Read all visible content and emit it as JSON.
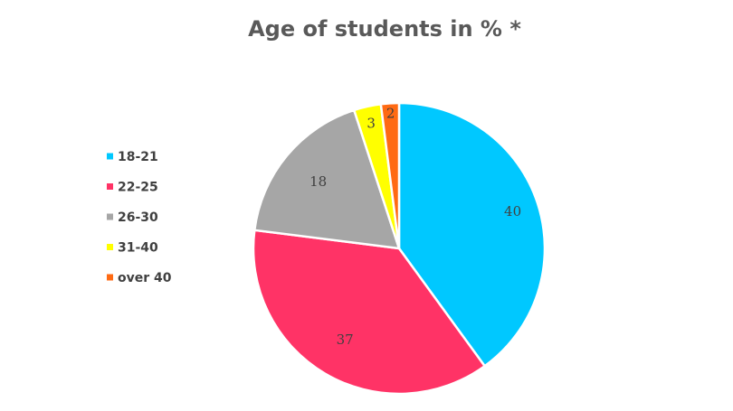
{
  "chart_data": {
    "type": "pie",
    "title": "Age of students in % *",
    "categories": [
      "18-21",
      "22-25",
      "26-30",
      "31-40",
      "over 40"
    ],
    "values": [
      40,
      37,
      18,
      3,
      2
    ],
    "data_labels": [
      "40",
      "37",
      "18",
      "3",
      "2"
    ],
    "colors": [
      "#00C8FF",
      "#FF3366",
      "#A6A6A6",
      "#FFFF00",
      "#FF6A13"
    ],
    "legend_position": "left",
    "start_angle": "12 o'clock, clockwise"
  },
  "colors": {
    "title": "#595959",
    "text": "#404040",
    "slice_border": "#ffffff"
  }
}
